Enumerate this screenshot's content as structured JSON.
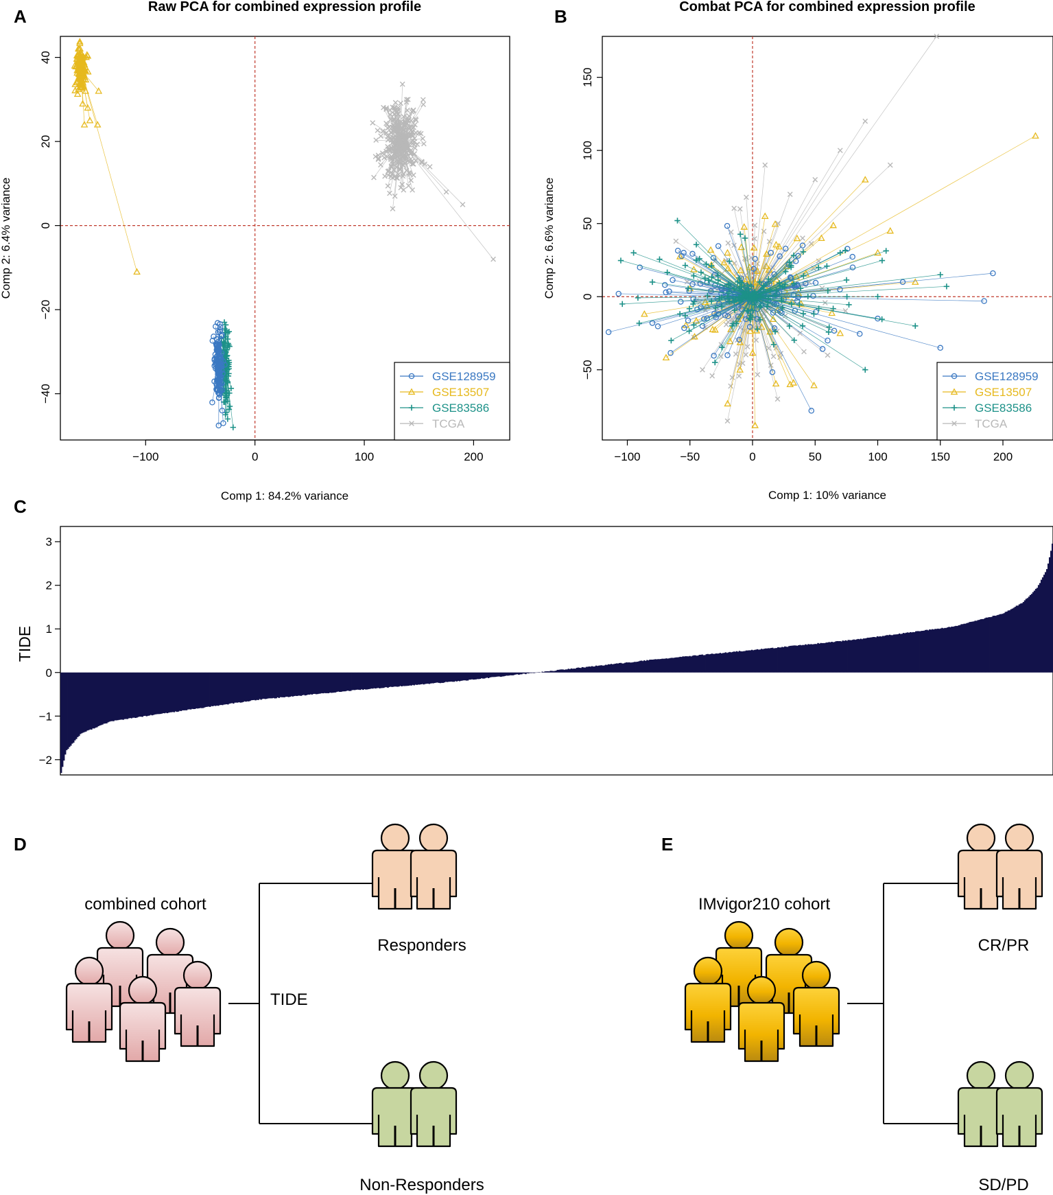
{
  "colors": {
    "gse128959": "#3a78c2",
    "gse13507": "#e6b91e",
    "gse83586": "#1c9188",
    "tcga": "#b8b8b8",
    "ref_line": "#c0392b",
    "tide_bar": "#12124a",
    "responder": "#f6d2b5",
    "nonresponder": "#c7d6a0",
    "combined": "#e9b4b4",
    "imvigor": "#f2b400"
  },
  "labels": {
    "panel_a": "A",
    "panel_b": "B",
    "panel_c": "C",
    "panel_d": "D",
    "panel_e": "E"
  },
  "chart_data": [
    {
      "panel": "A",
      "type": "scatter",
      "title": "Raw PCA for combined expression profile",
      "xlabel": "Comp 1: 84.2% variance",
      "ylabel": "Comp 2: 6.4% variance",
      "xlim": [
        -178,
        233
      ],
      "ylim": [
        -51,
        45
      ],
      "xticks": [
        "−100",
        "0",
        "100",
        "200"
      ],
      "xtick_values": [
        -100,
        0,
        100,
        200
      ],
      "yticks": [
        "−40",
        "−20",
        "0",
        "20",
        "40"
      ],
      "ytick_values": [
        -40,
        -20,
        0,
        20,
        40
      ],
      "reference_lines": {
        "x": 0,
        "y": 0
      },
      "legend": [
        "GSE128959",
        "GSE13507",
        "GSE83586",
        "TCGA"
      ],
      "series": [
        {
          "name": "GSE128959",
          "marker": "circle",
          "centroid": [
            -33,
            -33
          ],
          "points": [
            [
              -36,
              -24
            ],
            [
              -35,
              -27
            ],
            [
              -34,
              -30
            ],
            [
              -37,
              -32
            ],
            [
              -32,
              -35
            ],
            [
              -35,
              -38
            ],
            [
              -33,
              -41
            ],
            [
              -30,
              -44
            ],
            [
              -29,
              -47
            ],
            [
              -31,
              -36
            ],
            [
              -34,
              -29
            ],
            [
              -36,
              -34
            ]
          ]
        },
        {
          "name": "GSE13507",
          "marker": "triangle",
          "centroid": [
            -159,
            37
          ],
          "points": [
            [
              -161,
              42
            ],
            [
              -158,
              40
            ],
            [
              -163,
              38
            ],
            [
              -157,
              36
            ],
            [
              -160,
              34
            ],
            [
              -155,
              32
            ],
            [
              -153,
              28
            ],
            [
              -151,
              25
            ],
            [
              -156,
              24
            ],
            [
              -144,
              24
            ],
            [
              -143,
              32
            ],
            [
              -108,
              -11
            ]
          ]
        },
        {
          "name": "GSE83586",
          "marker": "plus",
          "centroid": [
            -27,
            -33
          ],
          "points": [
            [
              -28,
              -23
            ],
            [
              -25,
              -27
            ],
            [
              -27,
              -30
            ],
            [
              -24,
              -33
            ],
            [
              -29,
              -37
            ],
            [
              -26,
              -40
            ],
            [
              -23,
              -43
            ],
            [
              -25,
              -46
            ],
            [
              -20,
              -48
            ],
            [
              -27,
              -45
            ]
          ]
        },
        {
          "name": "TCGA",
          "marker": "x",
          "centroid": [
            133,
            20
          ],
          "points": [
            [
              140,
              30
            ],
            [
              128,
              28
            ],
            [
              120,
              22
            ],
            [
              113,
              16
            ],
            [
              122,
              12
            ],
            [
              128,
              7
            ],
            [
              126,
              4
            ],
            [
              145,
              12
            ],
            [
              160,
              14
            ],
            [
              175,
              8
            ],
            [
              190,
              5
            ],
            [
              218,
              -8
            ],
            [
              150,
              22
            ],
            [
              135,
              18
            ]
          ]
        }
      ]
    },
    {
      "panel": "B",
      "type": "scatter",
      "title": "Combat PCA for combined expression profile",
      "xlabel": "Comp 1: 10% variance",
      "ylabel": "Comp 2: 6.6% variance",
      "xlim": [
        -120,
        240
      ],
      "ylim": [
        -98,
        178
      ],
      "xticks": [
        "−100",
        "−50",
        "0",
        "50",
        "100",
        "150",
        "200"
      ],
      "xtick_values": [
        -100,
        -50,
        0,
        50,
        100,
        150,
        200
      ],
      "yticks": [
        "−50",
        "0",
        "50",
        "100",
        "150"
      ],
      "ytick_values": [
        -50,
        0,
        50,
        100,
        150
      ],
      "reference_lines": {
        "x": 0,
        "y": 0
      },
      "legend": [
        "GSE128959",
        "GSE13507",
        "GSE83586",
        "TCGA"
      ],
      "series": [
        {
          "name": "GSE128959",
          "marker": "circle",
          "centroid": [
            0,
            0
          ],
          "points": [
            [
              -107,
              2
            ],
            [
              -90,
              20
            ],
            [
              -80,
              -18
            ],
            [
              -70,
              8
            ],
            [
              -55,
              30
            ],
            [
              -40,
              -20
            ],
            [
              -30,
              15
            ],
            [
              -20,
              -40
            ],
            [
              40,
              35
            ],
            [
              60,
              -30
            ],
            [
              80,
              20
            ],
            [
              100,
              -15
            ],
            [
              120,
              10
            ],
            [
              150,
              -35
            ],
            [
              185,
              -3
            ],
            [
              192,
              16
            ],
            [
              47,
              -78
            ]
          ]
        },
        {
          "name": "GSE13507",
          "marker": "triangle",
          "centroid": [
            0,
            0
          ],
          "points": [
            [
              -20,
              30
            ],
            [
              10,
              55
            ],
            [
              30,
              -60
            ],
            [
              55,
              40
            ],
            [
              70,
              -25
            ],
            [
              90,
              80
            ],
            [
              100,
              30
            ],
            [
              110,
              45
            ],
            [
              130,
              10
            ],
            [
              226,
              110
            ],
            [
              2,
              -88
            ],
            [
              -10,
              -50
            ]
          ]
        },
        {
          "name": "GSE83586",
          "marker": "plus",
          "centroid": [
            0,
            0
          ],
          "points": [
            [
              -104,
              -5
            ],
            [
              -95,
              30
            ],
            [
              -80,
              10
            ],
            [
              -65,
              -30
            ],
            [
              -60,
              52
            ],
            [
              -45,
              25
            ],
            [
              -30,
              -45
            ],
            [
              -10,
              10
            ],
            [
              40,
              -20
            ],
            [
              70,
              30
            ],
            [
              100,
              0
            ],
            [
              130,
              -20
            ],
            [
              150,
              15
            ],
            [
              155,
              7
            ],
            [
              90,
              -50
            ]
          ]
        },
        {
          "name": "TCGA",
          "marker": "x",
          "centroid": [
            0,
            0
          ],
          "points": [
            [
              -20,
              -85
            ],
            [
              -10,
              60
            ],
            [
              10,
              90
            ],
            [
              30,
              70
            ],
            [
              50,
              80
            ],
            [
              70,
              100
            ],
            [
              90,
              120
            ],
            [
              110,
              90
            ],
            [
              147,
              178
            ],
            [
              20,
              -70
            ],
            [
              -40,
              -50
            ],
            [
              60,
              -40
            ],
            [
              -5,
              68
            ],
            [
              40,
              40
            ]
          ]
        }
      ]
    },
    {
      "panel": "C",
      "type": "bar",
      "title": "",
      "xlabel": "",
      "ylabel": "TIDE",
      "ylim": [
        -2.35,
        3.35
      ],
      "yticks": [
        "−2",
        "−1",
        "0",
        "1",
        "2",
        "3"
      ],
      "ytick_values": [
        -2,
        -1,
        0,
        1,
        2,
        3
      ],
      "n_samples": 720,
      "sorted_quantiles": {
        "q": [
          0,
          0.005,
          0.02,
          0.05,
          0.1,
          0.2,
          0.3,
          0.4,
          0.5,
          0.6,
          0.7,
          0.8,
          0.9,
          0.95,
          0.97,
          0.985,
          0.995,
          1
        ],
        "value": [
          -2.3,
          -1.8,
          -1.4,
          -1.12,
          -0.95,
          -0.62,
          -0.4,
          -0.2,
          0.05,
          0.3,
          0.52,
          0.75,
          1.05,
          1.35,
          1.6,
          1.95,
          2.4,
          2.95
        ]
      }
    }
  ],
  "diagram_d": {
    "cohort_label": "combined  cohort",
    "method_label": "TIDE",
    "top_label": "Responders",
    "bottom_label": "Non-Responders"
  },
  "diagram_e": {
    "cohort_label": "IMvigor210 cohort",
    "top_label": "CR/PR",
    "bottom_label": "SD/PD"
  }
}
